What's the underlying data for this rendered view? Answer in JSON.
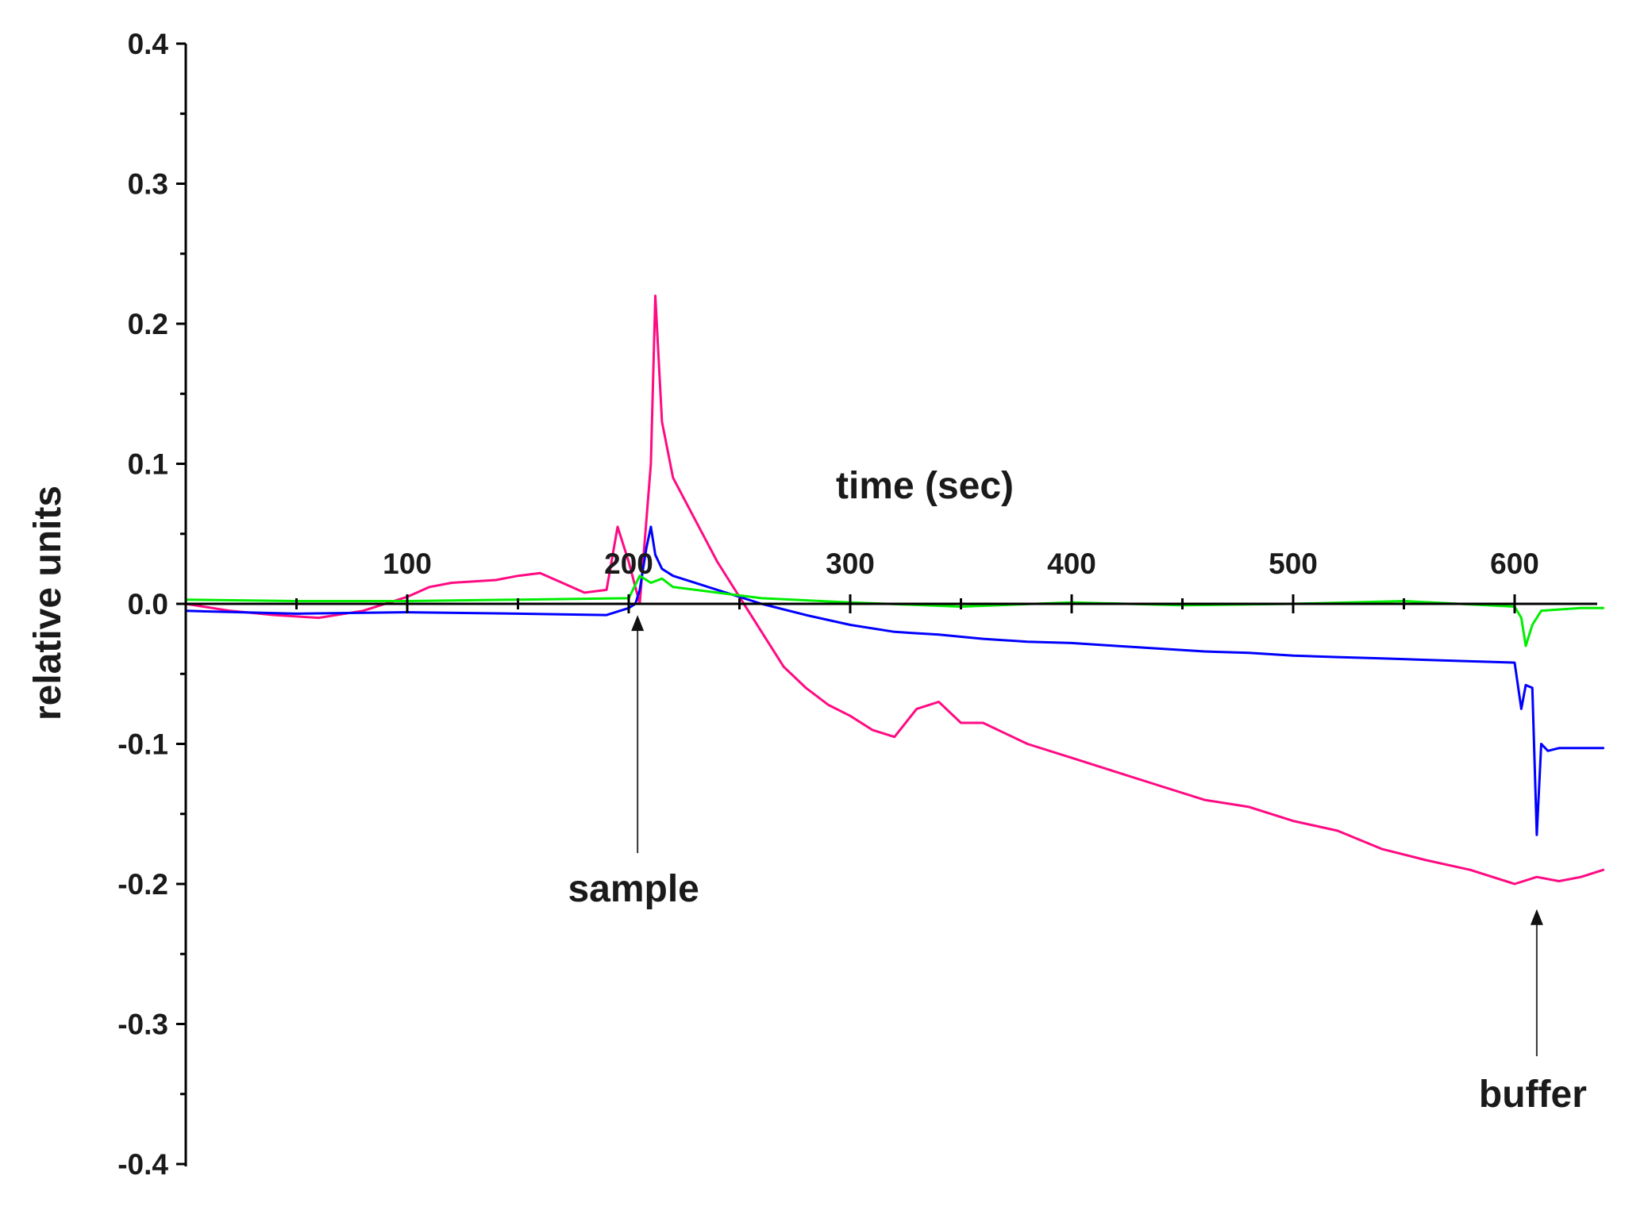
{
  "chart_data": {
    "type": "line",
    "title": "",
    "xlabel": "time (sec)",
    "ylabel": "relative units",
    "xlim": [
      0,
      640
    ],
    "ylim": [
      -0.4,
      0.4
    ],
    "x_ticks": [
      "100",
      "200",
      "300",
      "400",
      "500",
      "600"
    ],
    "y_ticks": [
      "0.4",
      "0.3",
      "0.2",
      "0.1",
      "0.0",
      "-0.1",
      "-0.2",
      "-0.3",
      "-0.4"
    ],
    "grid": false,
    "legend": "none",
    "series": [
      {
        "color": "#ff0a82",
        "x": [
          0,
          20,
          40,
          60,
          80,
          100,
          110,
          120,
          140,
          150,
          160,
          170,
          180,
          190,
          195,
          200,
          205,
          210,
          212,
          215,
          220,
          230,
          240,
          250,
          260,
          270,
          280,
          290,
          300,
          310,
          320,
          330,
          340,
          350,
          360,
          380,
          400,
          420,
          440,
          460,
          480,
          500,
          520,
          540,
          560,
          580,
          600,
          610,
          620,
          630,
          640
        ],
        "y": [
          0.0,
          -0.005,
          -0.008,
          -0.01,
          -0.005,
          0.005,
          0.012,
          0.015,
          0.017,
          0.02,
          0.022,
          0.015,
          0.008,
          0.01,
          0.055,
          0.03,
          0.0,
          0.1,
          0.22,
          0.13,
          0.09,
          0.06,
          0.03,
          0.005,
          -0.02,
          -0.045,
          -0.06,
          -0.072,
          -0.08,
          -0.09,
          -0.095,
          -0.075,
          -0.07,
          -0.085,
          -0.085,
          -0.1,
          -0.11,
          -0.12,
          -0.13,
          -0.14,
          -0.145,
          -0.155,
          -0.162,
          -0.175,
          -0.183,
          -0.19,
          -0.2,
          -0.195,
          -0.198,
          -0.195,
          -0.19
        ]
      },
      {
        "color": "#0000ff",
        "x": [
          0,
          50,
          100,
          150,
          190,
          200,
          203,
          205,
          208,
          210,
          212,
          215,
          220,
          240,
          260,
          280,
          300,
          320,
          340,
          360,
          380,
          400,
          420,
          440,
          460,
          480,
          500,
          520,
          540,
          560,
          580,
          600,
          603,
          605,
          608,
          610,
          612,
          615,
          620,
          630,
          640
        ],
        "y": [
          -0.005,
          -0.007,
          -0.006,
          -0.007,
          -0.008,
          -0.003,
          0.0,
          0.01,
          0.04,
          0.055,
          0.035,
          0.025,
          0.02,
          0.01,
          0.0,
          -0.008,
          -0.015,
          -0.02,
          -0.022,
          -0.025,
          -0.027,
          -0.028,
          -0.03,
          -0.032,
          -0.034,
          -0.035,
          -0.037,
          -0.038,
          -0.039,
          -0.04,
          -0.041,
          -0.042,
          -0.075,
          -0.058,
          -0.06,
          -0.165,
          -0.1,
          -0.105,
          -0.103,
          -0.103,
          -0.103
        ]
      },
      {
        "color": "#00ee00",
        "x": [
          0,
          50,
          100,
          150,
          200,
          205,
          210,
          215,
          220,
          240,
          260,
          300,
          350,
          400,
          450,
          500,
          550,
          600,
          603,
          605,
          608,
          612,
          620,
          630,
          640
        ],
        "y": [
          0.003,
          0.002,
          0.002,
          0.003,
          0.004,
          0.02,
          0.015,
          0.018,
          0.012,
          0.008,
          0.004,
          0.001,
          -0.002,
          0.001,
          -0.001,
          0.0,
          0.002,
          -0.002,
          -0.01,
          -0.03,
          -0.015,
          -0.005,
          -0.004,
          -0.003,
          -0.003
        ]
      }
    ],
    "annotations": [
      {
        "text": "sample",
        "x": 204,
        "y_from": -0.178,
        "y_to": -0.008
      },
      {
        "text": "buffer",
        "x": 610,
        "y_from": -0.323,
        "y_to": -0.218
      }
    ]
  }
}
